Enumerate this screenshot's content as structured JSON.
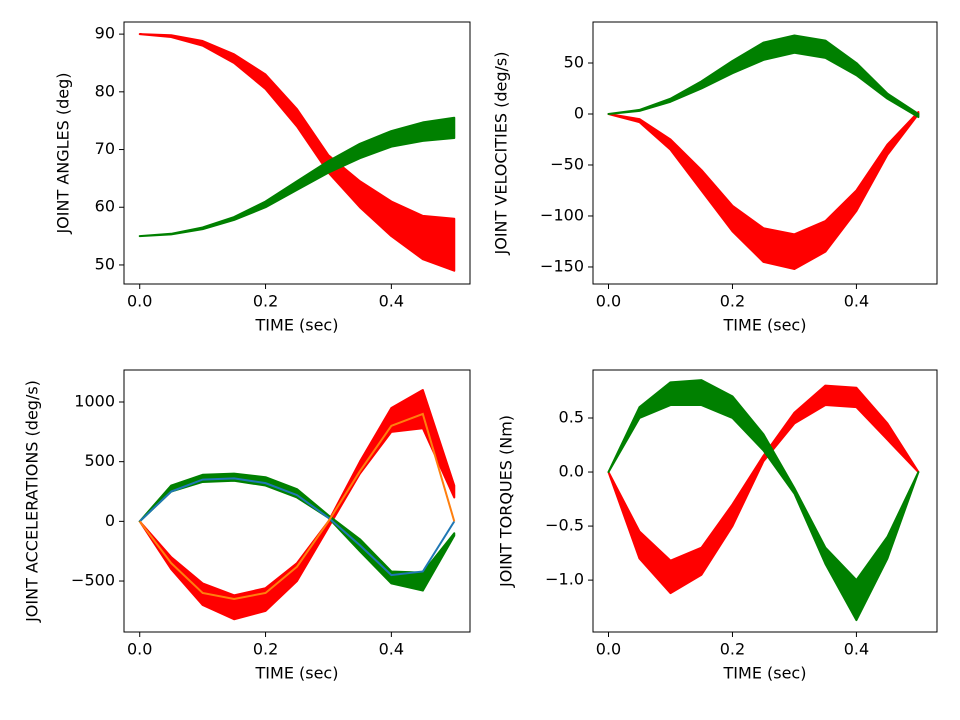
{
  "chart_data": [
    {
      "type": "band",
      "xlabel": "TIME (sec)",
      "ylabel": "JOINT ANGLES (deg)",
      "x": [
        0,
        0.05,
        0.1,
        0.15,
        0.2,
        0.25,
        0.3,
        0.35,
        0.4,
        0.45,
        0.5
      ],
      "xlim": [
        -0.025,
        0.525
      ],
      "xticks": [
        {
          "value": 0,
          "label": "0.0"
        },
        {
          "value": 0.2,
          "label": "0.2"
        },
        {
          "value": 0.4,
          "label": "0.4"
        }
      ],
      "ylim": [
        46.7,
        92.1
      ],
      "yticks": [
        50,
        60,
        70,
        80,
        90
      ],
      "series": [
        {
          "color": "#ff0000",
          "low": [
            90,
            89.5,
            88,
            85,
            80.5,
            74,
            66,
            60,
            55,
            51,
            49
          ],
          "high": [
            90,
            89.8,
            88.8,
            86.5,
            83,
            77,
            69,
            64.5,
            61,
            58.5,
            58
          ]
        },
        {
          "color": "#008000",
          "low": [
            55,
            55.3,
            56.2,
            57.8,
            60,
            63,
            66,
            68.5,
            70.5,
            71.5,
            72
          ],
          "high": [
            55,
            55.4,
            56.5,
            58.3,
            61,
            64.5,
            68,
            71,
            73.2,
            74.7,
            75.5
          ]
        }
      ]
    },
    {
      "type": "band",
      "xlabel": "TIME (sec)",
      "ylabel": "JOINT VELOCITIES (deg/s)",
      "x": [
        0,
        0.05,
        0.1,
        0.15,
        0.2,
        0.25,
        0.3,
        0.35,
        0.4,
        0.45,
        0.5
      ],
      "xlim": [
        -0.025,
        0.53
      ],
      "xticks": [
        {
          "value": 0,
          "label": "0.0"
        },
        {
          "value": 0.2,
          "label": "0.2"
        },
        {
          "value": 0.4,
          "label": "0.4"
        }
      ],
      "ylim": [
        -166.7,
        90.2
      ],
      "yticks": [
        {
          "value": -150,
          "label": "−150"
        },
        {
          "value": -100,
          "label": "−100"
        },
        {
          "value": -50,
          "label": "−50"
        },
        0,
        50
      ],
      "series": [
        {
          "color": "#ff0000",
          "low": [
            0,
            -8,
            -35,
            -75,
            -115,
            -145,
            -152,
            -135,
            -95,
            -40,
            0
          ],
          "high": [
            0,
            -5,
            -25,
            -55,
            -90,
            -112,
            -118,
            -105,
            -75,
            -30,
            2
          ]
        },
        {
          "color": "#008000",
          "low": [
            0,
            3,
            12,
            25,
            40,
            53,
            60,
            55,
            38,
            15,
            -3
          ],
          "high": [
            0,
            4,
            15,
            32,
            52,
            70,
            77,
            72,
            50,
            20,
            0
          ]
        }
      ]
    },
    {
      "type": "band",
      "xlabel": "TIME (sec)",
      "ylabel": "JOINT ACCELERATIONS (deg/s)",
      "x": [
        0,
        0.05,
        0.1,
        0.15,
        0.2,
        0.25,
        0.3,
        0.35,
        0.4,
        0.45,
        0.5
      ],
      "xlim": [
        -0.025,
        0.525
      ],
      "xticks": [
        {
          "value": 0,
          "label": "0.0"
        },
        {
          "value": 0.2,
          "label": "0.2"
        },
        {
          "value": 0.4,
          "label": "0.4"
        }
      ],
      "ylim": [
        -927,
        1268
      ],
      "yticks": [
        {
          "value": -500,
          "label": "−500"
        },
        0,
        500,
        1000
      ],
      "lines": [
        {
          "color": "#1f77b4",
          "values": [
            0,
            250,
            350,
            360,
            320,
            220,
            30,
            -200,
            -450,
            -420,
            0
          ]
        },
        {
          "color": "#ff7f0e",
          "values": [
            0,
            -350,
            -600,
            -650,
            -600,
            -380,
            0,
            420,
            800,
            900,
            0
          ]
        }
      ],
      "series": [
        {
          "color": "#ff0000",
          "low": [
            0,
            -400,
            -700,
            -820,
            -750,
            -500,
            -50,
            400,
            750,
            780,
            200
          ],
          "high": [
            0,
            -300,
            -520,
            -620,
            -560,
            -350,
            0,
            500,
            950,
            1100,
            300
          ]
        },
        {
          "color": "#008000",
          "low": [
            0,
            250,
            330,
            340,
            300,
            200,
            30,
            -250,
            -520,
            -580,
            -120
          ],
          "high": [
            0,
            300,
            390,
            400,
            370,
            270,
            50,
            -150,
            -420,
            -430,
            -100
          ]
        }
      ]
    },
    {
      "type": "band",
      "xlabel": "TIME (sec)",
      "ylabel": "JOINT TORQUES (Nm)",
      "x": [
        0,
        0.05,
        0.1,
        0.15,
        0.2,
        0.25,
        0.3,
        0.35,
        0.4,
        0.45,
        0.5
      ],
      "xlim": [
        -0.025,
        0.53
      ],
      "xticks": [
        {
          "value": 0,
          "label": "0.0"
        },
        {
          "value": 0.2,
          "label": "0.2"
        },
        {
          "value": 0.4,
          "label": "0.4"
        }
      ],
      "ylim": [
        -1.48,
        0.944
      ],
      "yticks": [
        {
          "value": -1,
          "label": "−1.0"
        },
        {
          "value": -0.5,
          "label": "−0.5"
        },
        {
          "value": 0,
          "label": "0.0"
        },
        0.5
      ],
      "series": [
        {
          "color": "#ff0000",
          "low": [
            0,
            -0.8,
            -1.12,
            -0.95,
            -0.5,
            0.1,
            0.45,
            0.62,
            0.6,
            0.3,
            0
          ],
          "high": [
            0,
            -0.55,
            -0.82,
            -0.7,
            -0.3,
            0.15,
            0.55,
            0.8,
            0.78,
            0.45,
            0
          ]
        },
        {
          "color": "#008000",
          "low": [
            0,
            0.5,
            0.62,
            0.62,
            0.5,
            0.2,
            -0.2,
            -0.85,
            -1.37,
            -0.8,
            0
          ],
          "high": [
            0,
            0.6,
            0.83,
            0.85,
            0.7,
            0.35,
            -0.15,
            -0.7,
            -1,
            -0.6,
            0
          ]
        }
      ]
    }
  ]
}
